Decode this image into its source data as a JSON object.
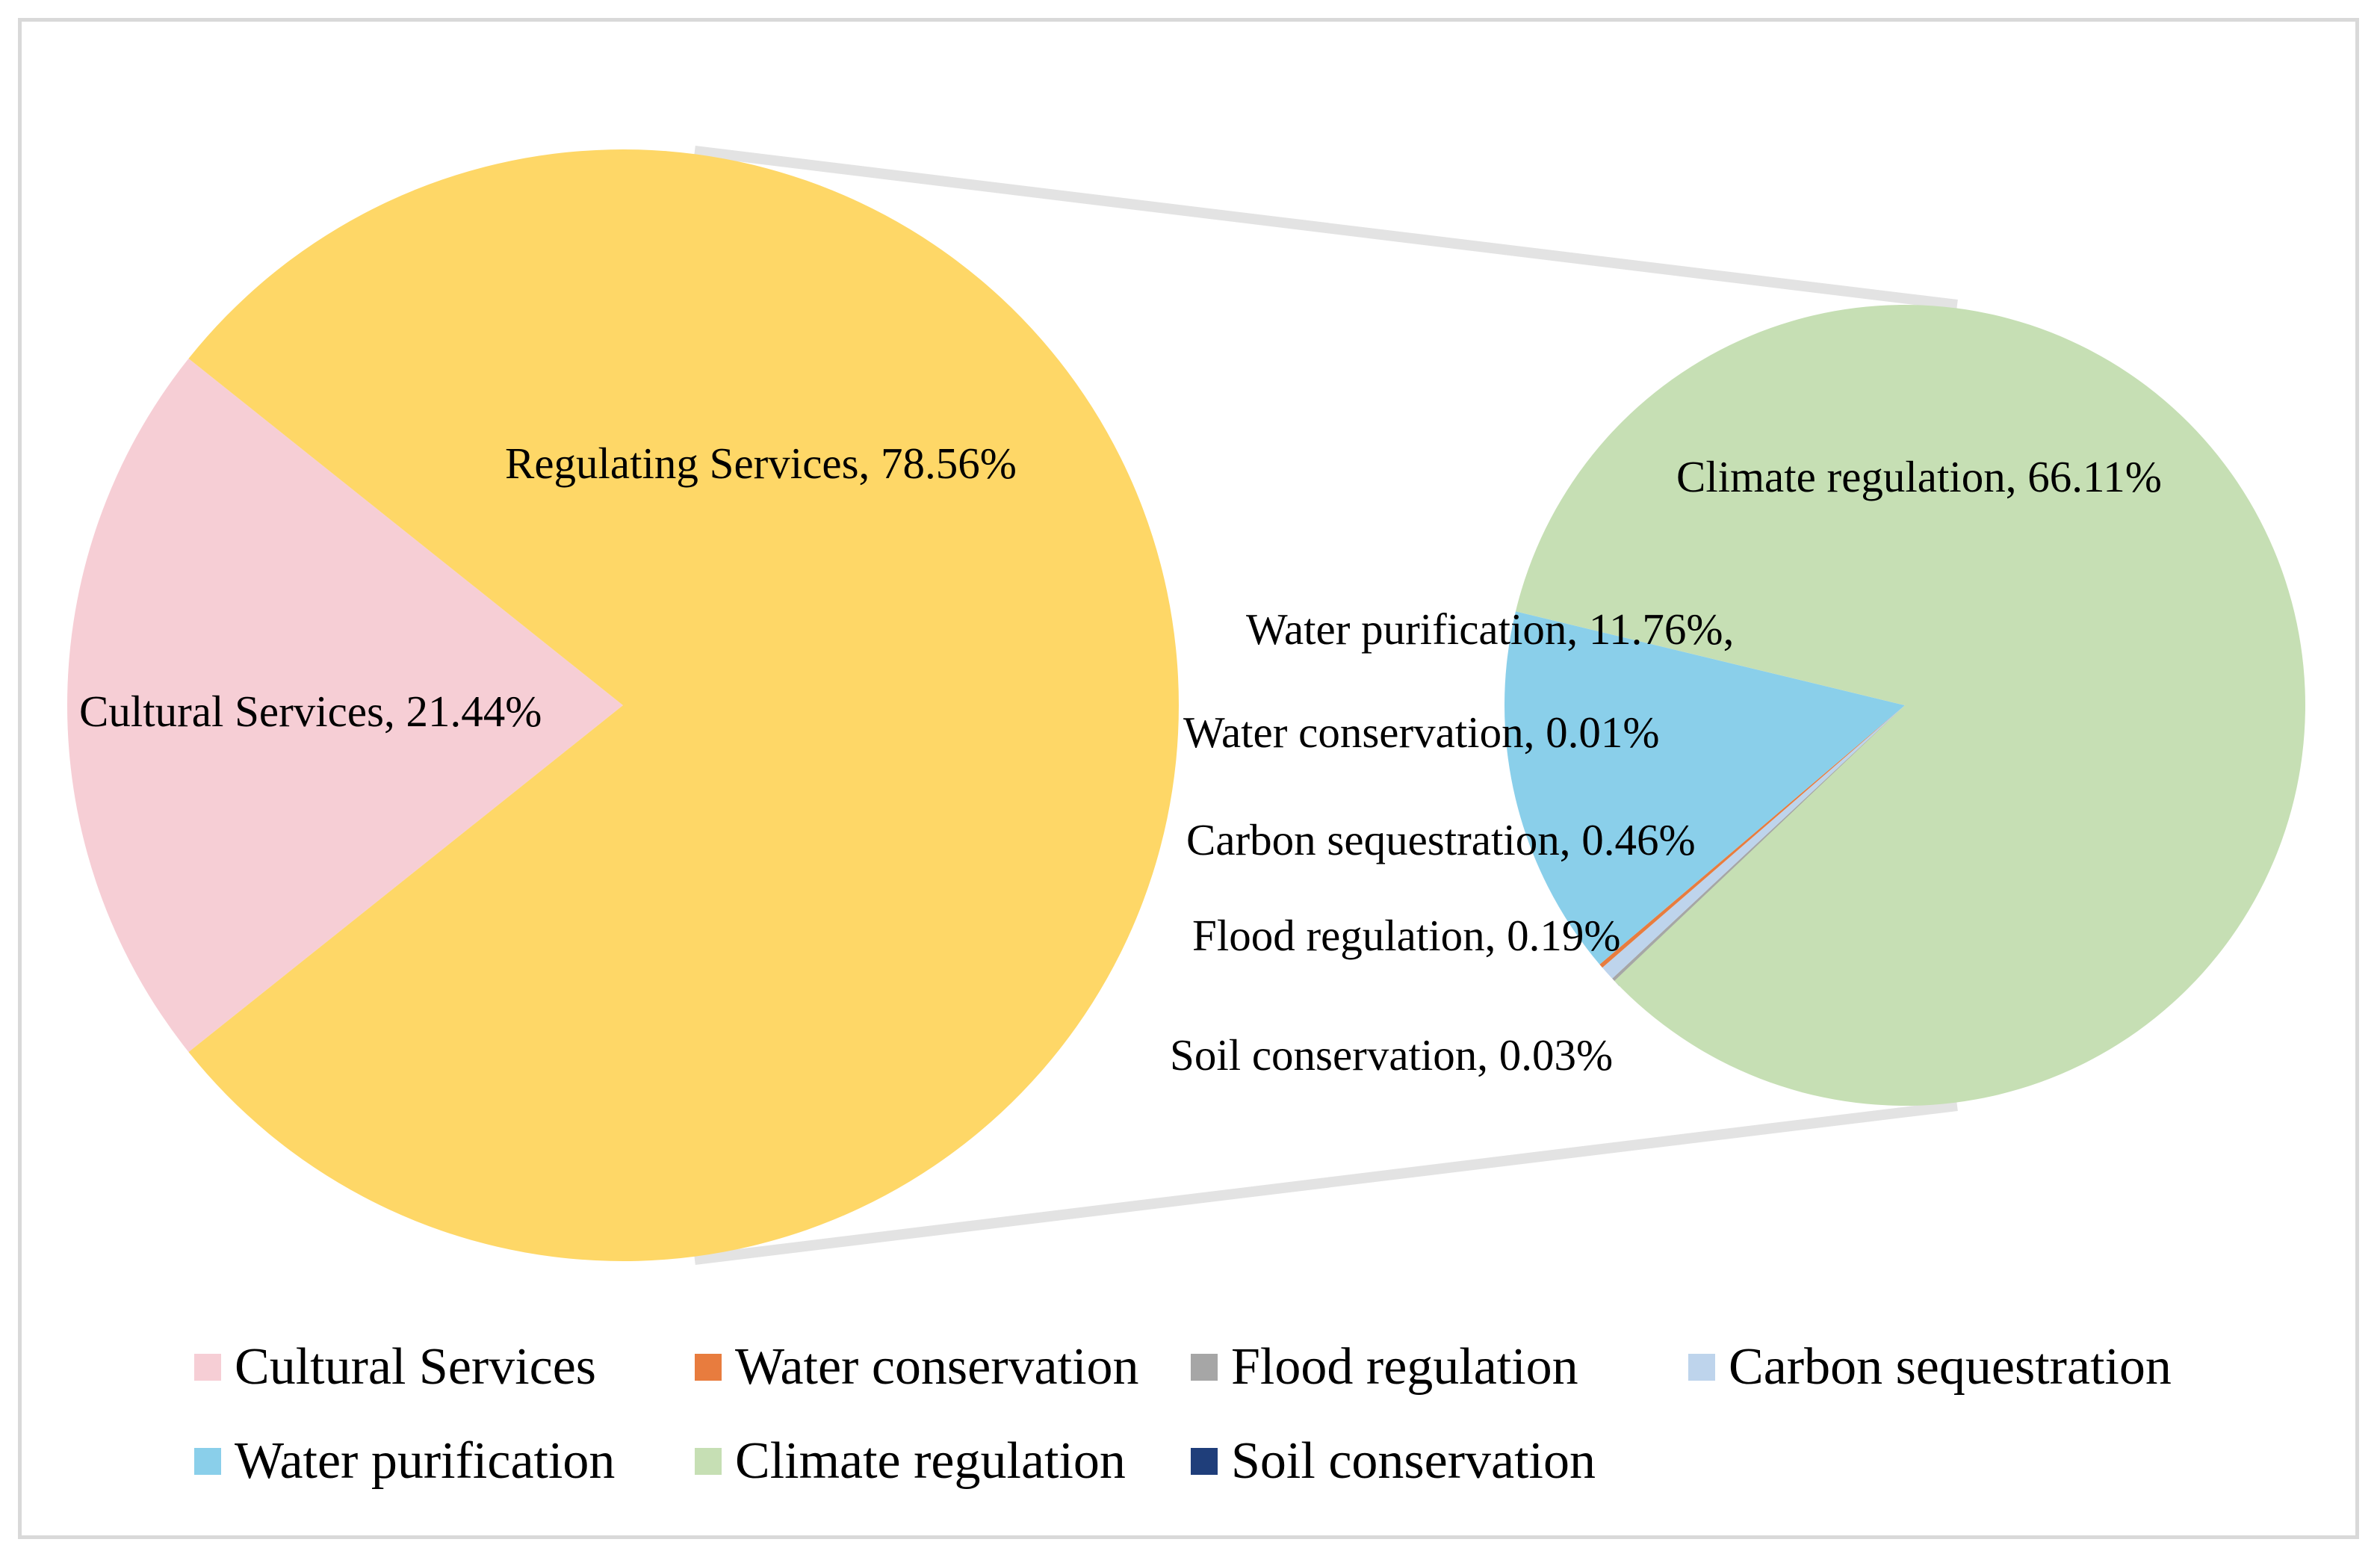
{
  "chart_data": {
    "type": "bar-of-pie",
    "main_pie": {
      "slices": [
        {
          "key": "cultural",
          "label": "Cultural Services",
          "value": 21.44,
          "color": "#F6CED5"
        },
        {
          "key": "regulating",
          "label": "Regulating Services",
          "value": 78.56,
          "color": "#FED767"
        }
      ]
    },
    "secondary_pie": {
      "parent": "Regulating Services",
      "slices": [
        {
          "key": "climate",
          "label": "Climate regulation",
          "value": 66.11,
          "color": "#C6DFB4"
        },
        {
          "key": "purification",
          "label": "Water purification",
          "value": 11.76,
          "color": "#8ACFEA"
        },
        {
          "key": "conservation",
          "label": "Water conservation",
          "value": 0.01,
          "color": "#E87C3E"
        },
        {
          "key": "carbon",
          "label": "Carbon sequestration",
          "value": 0.46,
          "color": "#BED4EC"
        },
        {
          "key": "flood",
          "label": "Flood regulation",
          "value": 0.19,
          "color": "#A6A6A6"
        },
        {
          "key": "soil",
          "label": "Soil conservation",
          "value": 0.03,
          "color": "#1F3E7A"
        }
      ]
    },
    "data_labels": {
      "cultural": "Cultural Services, 21.44%",
      "regulating": "Regulating Services, 78.56%",
      "climate": "Climate regulation, 66.11%",
      "purification": "Water purification, 11.76%,",
      "conservation": "Water conservation, 0.01%",
      "carbon": "Carbon sequestration, 0.46%",
      "flood": "Flood regulation, 0.19%",
      "soil": "Soil conservation, 0.03%"
    },
    "legend": {
      "position": "bottom",
      "items": [
        {
          "label": "Cultural Services",
          "color": "#F6CED5"
        },
        {
          "label": "Water conservation",
          "color": "#E87C3E"
        },
        {
          "label": "Flood regulation",
          "color": "#A6A6A6"
        },
        {
          "label": "Carbon sequestration",
          "color": "#BED4EC"
        },
        {
          "label": "Water purification",
          "color": "#8ACFEA"
        },
        {
          "label": "Climate regulation",
          "color": "#C6DFB4"
        },
        {
          "label": "Soil conservation",
          "color": "#1F3E7A"
        }
      ]
    }
  }
}
